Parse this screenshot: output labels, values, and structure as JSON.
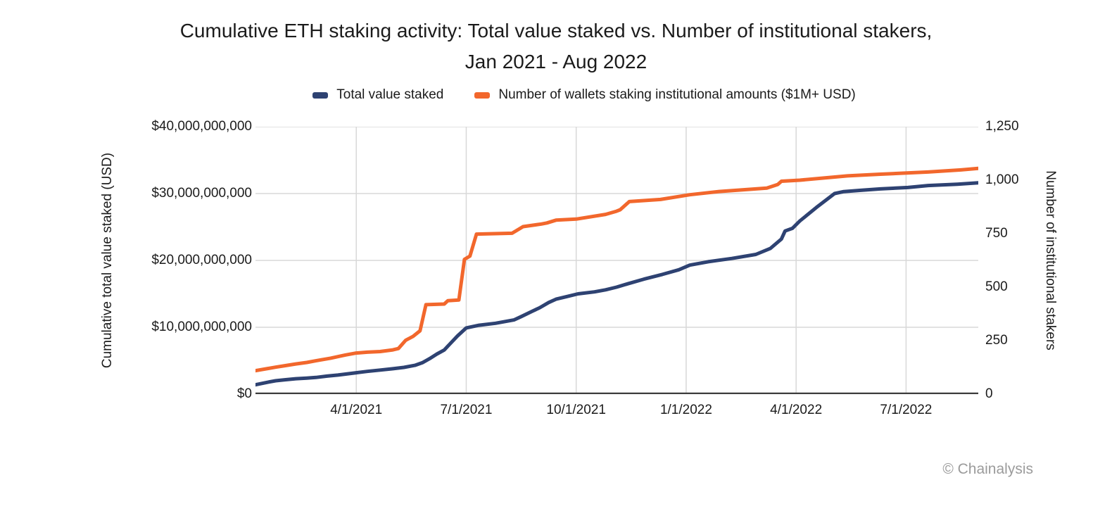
{
  "title": {
    "line1": "Cumulative ETH staking activity: Total value staked vs. Number of institutional stakers,",
    "line2": "Jan 2021 - Aug 2022"
  },
  "legend": [
    {
      "label": "Total value staked",
      "color": "#2E4272"
    },
    {
      "label": "Number of wallets staking institutional amounts ($1M+ USD)",
      "color": "#F2672C"
    }
  ],
  "axes": {
    "left": {
      "title": "Cumulative total value staked (USD)",
      "tick_labels": [
        "$40,000,000,000",
        "$30,000,000,000",
        "$20,000,000,000",
        "$10,000,000,000",
        "$0"
      ],
      "tick_values": [
        40000000000,
        30000000000,
        20000000000,
        10000000000,
        0
      ],
      "max": 40000000000
    },
    "right": {
      "title": "Number of institutional stakers",
      "tick_labels": [
        "1,250",
        "1,000",
        "750",
        "500",
        "250",
        "0"
      ],
      "tick_values": [
        1250,
        1000,
        750,
        500,
        250,
        0
      ],
      "max": 1250
    },
    "x": {
      "tick_labels": [
        "4/1/2021",
        "7/1/2021",
        "10/1/2021",
        "1/1/2022",
        "4/1/2022",
        "7/1/2022"
      ],
      "tick_months": [
        3,
        6,
        9,
        12,
        15,
        18
      ]
    }
  },
  "watermark": "© Chainalysis",
  "colors": {
    "gridline": "#D8D8D8",
    "axis_line": "#3D3D3D",
    "total_value_staked": "#2E4272",
    "institutional_wallets": "#F2672C"
  },
  "chart_data": {
    "type": "line",
    "title": "Cumulative ETH staking activity: Total value staked vs. Number of institutional stakers, Jan 2021 - Aug 2022",
    "x_axis_note": "t = months since Jan 1, 2021 (3 = 4/1/2021, 18 = 7/1/2022)",
    "x_domain_months": [
      0.25,
      19.97
    ],
    "grid": true,
    "legend_position": "top-center",
    "left_axis": {
      "label": "Cumulative total value staked (USD)",
      "range": [
        0,
        40000000000
      ]
    },
    "right_axis": {
      "label": "Number of institutional stakers",
      "range": [
        0,
        1250
      ]
    },
    "series": [
      {
        "name": "Total value staked",
        "axis": "left",
        "unit": "USD",
        "points": [
          [
            0.25,
            1400000000
          ],
          [
            0.6,
            1800000000
          ],
          [
            0.8,
            2000000000
          ],
          [
            1.05,
            2150000000
          ],
          [
            1.35,
            2300000000
          ],
          [
            1.65,
            2400000000
          ],
          [
            1.9,
            2500000000
          ],
          [
            2.2,
            2700000000
          ],
          [
            2.5,
            2850000000
          ],
          [
            3.0,
            3200000000
          ],
          [
            3.3,
            3400000000
          ],
          [
            3.65,
            3600000000
          ],
          [
            4.0,
            3800000000
          ],
          [
            4.3,
            4000000000
          ],
          [
            4.6,
            4300000000
          ],
          [
            4.8,
            4700000000
          ],
          [
            5.0,
            5300000000
          ],
          [
            5.2,
            6000000000
          ],
          [
            5.4,
            6600000000
          ],
          [
            5.57,
            7600000000
          ],
          [
            5.76,
            8700000000
          ],
          [
            6.0,
            9900000000
          ],
          [
            6.35,
            10300000000
          ],
          [
            6.8,
            10600000000
          ],
          [
            7.3,
            11100000000
          ],
          [
            7.5,
            11600000000
          ],
          [
            7.8,
            12400000000
          ],
          [
            8.0,
            12900000000
          ],
          [
            8.25,
            13700000000
          ],
          [
            8.45,
            14200000000
          ],
          [
            8.75,
            14600000000
          ],
          [
            9.05,
            15000000000
          ],
          [
            9.5,
            15300000000
          ],
          [
            9.8,
            15600000000
          ],
          [
            10.1,
            16000000000
          ],
          [
            10.4,
            16500000000
          ],
          [
            10.85,
            17200000000
          ],
          [
            11.35,
            17900000000
          ],
          [
            11.8,
            18600000000
          ],
          [
            12.1,
            19300000000
          ],
          [
            12.6,
            19800000000
          ],
          [
            13.25,
            20300000000
          ],
          [
            13.9,
            20900000000
          ],
          [
            14.3,
            21800000000
          ],
          [
            14.6,
            23200000000
          ],
          [
            14.7,
            24400000000
          ],
          [
            14.9,
            24800000000
          ],
          [
            15.1,
            25900000000
          ],
          [
            15.55,
            27900000000
          ],
          [
            16.05,
            30000000000
          ],
          [
            16.3,
            30300000000
          ],
          [
            16.8,
            30500000000
          ],
          [
            17.3,
            30700000000
          ],
          [
            18.05,
            30900000000
          ],
          [
            18.6,
            31200000000
          ],
          [
            19.4,
            31400000000
          ],
          [
            19.97,
            31600000000
          ]
        ]
      },
      {
        "name": "Number of wallets staking institutional amounts ($1M+ USD)",
        "axis": "right",
        "unit": "wallets",
        "points": [
          [
            0.25,
            110
          ],
          [
            0.6,
            120
          ],
          [
            0.8,
            126
          ],
          [
            1.05,
            133
          ],
          [
            1.35,
            141
          ],
          [
            1.65,
            148
          ],
          [
            1.9,
            156
          ],
          [
            2.3,
            168
          ],
          [
            2.7,
            183
          ],
          [
            3.0,
            192
          ],
          [
            3.3,
            196
          ],
          [
            3.65,
            199
          ],
          [
            4.0,
            207
          ],
          [
            4.15,
            213
          ],
          [
            4.35,
            252
          ],
          [
            4.55,
            270
          ],
          [
            4.74,
            296
          ],
          [
            4.9,
            418
          ],
          [
            5.4,
            421
          ],
          [
            5.5,
            437
          ],
          [
            5.8,
            440
          ],
          [
            5.95,
            630
          ],
          [
            6.1,
            645
          ],
          [
            6.28,
            748
          ],
          [
            7.25,
            752
          ],
          [
            7.55,
            783
          ],
          [
            8.05,
            795
          ],
          [
            8.2,
            800
          ],
          [
            8.45,
            813
          ],
          [
            9.0,
            818
          ],
          [
            9.8,
            840
          ],
          [
            10.1,
            855
          ],
          [
            10.2,
            862
          ],
          [
            10.45,
            900
          ],
          [
            11.3,
            910
          ],
          [
            12.1,
            932
          ],
          [
            12.9,
            947
          ],
          [
            14.2,
            963
          ],
          [
            14.5,
            980
          ],
          [
            14.6,
            995
          ],
          [
            15.1,
            1000
          ],
          [
            15.95,
            1013
          ],
          [
            16.4,
            1020
          ],
          [
            17.3,
            1028
          ],
          [
            18.6,
            1038
          ],
          [
            19.5,
            1048
          ],
          [
            19.97,
            1055
          ]
        ]
      }
    ]
  }
}
